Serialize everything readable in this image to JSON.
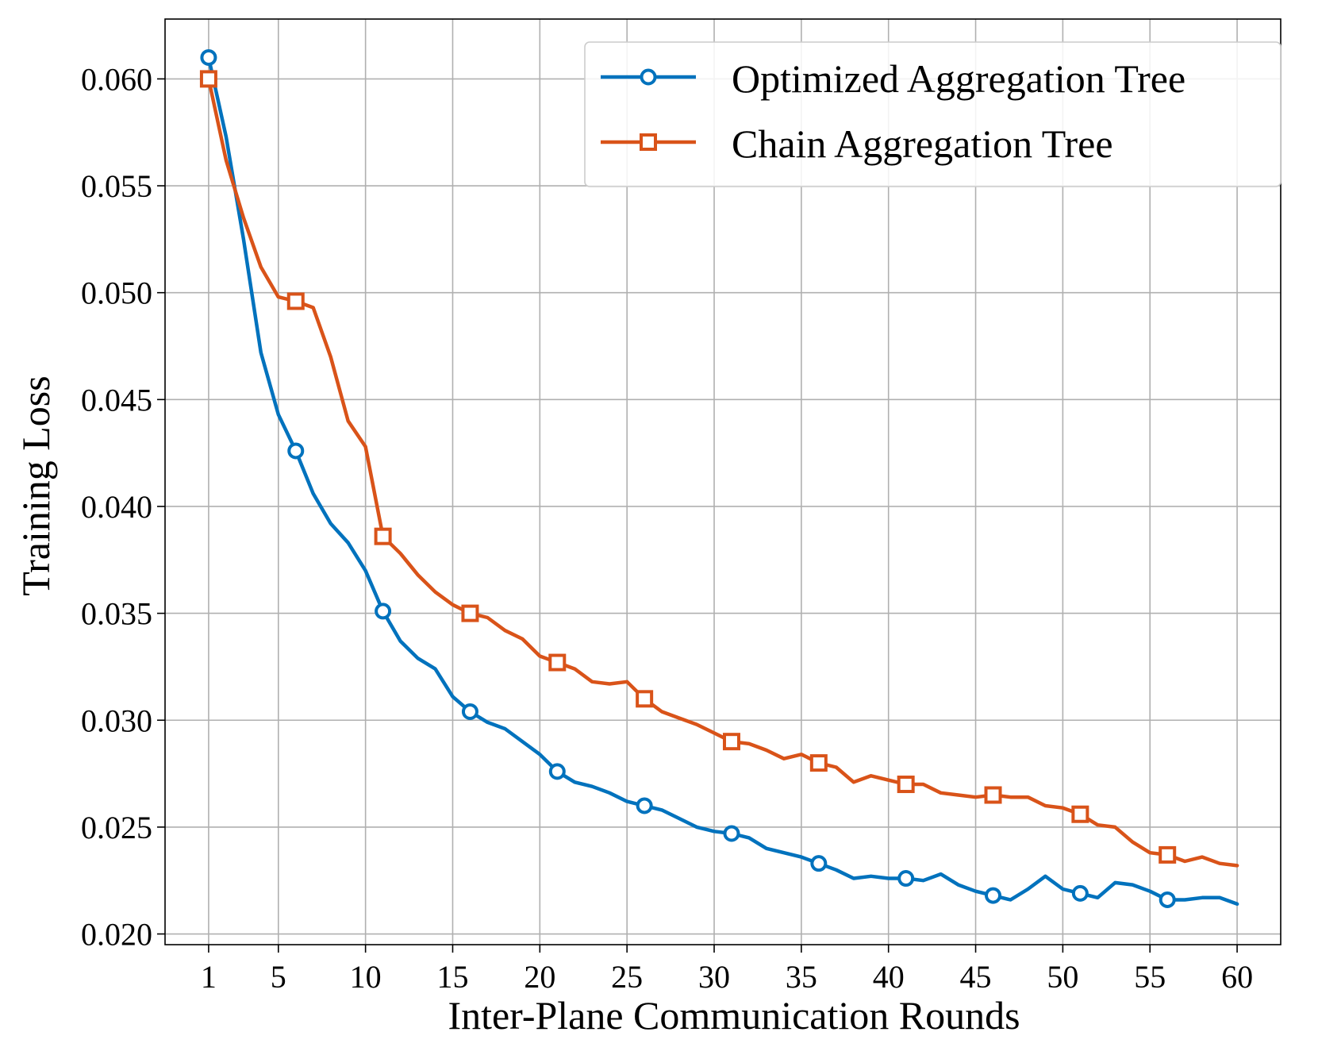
{
  "chart_data": {
    "type": "line",
    "title": "",
    "xlabel": "Inter-Plane Communication Rounds",
    "ylabel": "Training Loss",
    "xlim": [
      -1.5,
      62.5
    ],
    "ylim": [
      0.0195,
      0.0628
    ],
    "xticks": [
      1,
      5,
      10,
      15,
      20,
      25,
      30,
      35,
      40,
      45,
      50,
      55,
      60
    ],
    "xtick_labels": [
      "1",
      "5",
      "10",
      "15",
      "20",
      "25",
      "30",
      "35",
      "40",
      "45",
      "50",
      "55",
      "60"
    ],
    "yticks": [
      0.02,
      0.025,
      0.03,
      0.035,
      0.04,
      0.045,
      0.05,
      0.055,
      0.06
    ],
    "ytick_labels": [
      "0.020",
      "0.025",
      "0.030",
      "0.035",
      "0.040",
      "0.045",
      "0.050",
      "0.055",
      "0.060"
    ],
    "grid": true,
    "legend_position": "top-right",
    "x": [
      1,
      2,
      3,
      4,
      5,
      6,
      7,
      8,
      9,
      10,
      11,
      12,
      13,
      14,
      15,
      16,
      17,
      18,
      19,
      20,
      21,
      22,
      23,
      24,
      25,
      26,
      27,
      28,
      29,
      30,
      31,
      32,
      33,
      34,
      35,
      36,
      37,
      38,
      39,
      40,
      41,
      42,
      43,
      44,
      45,
      46,
      47,
      48,
      49,
      50,
      51,
      52,
      53,
      54,
      55,
      56,
      57,
      58,
      59,
      60
    ],
    "series": [
      {
        "name": "Optimized Aggregation Tree",
        "color": "#0072BD",
        "marker": "circle",
        "marker_every": 5,
        "values": [
          0.061,
          0.0573,
          0.0525,
          0.0472,
          0.0443,
          0.0426,
          0.0406,
          0.0392,
          0.0383,
          0.037,
          0.0351,
          0.0337,
          0.0329,
          0.0324,
          0.0311,
          0.0304,
          0.0299,
          0.0296,
          0.029,
          0.0284,
          0.0276,
          0.0271,
          0.0269,
          0.0266,
          0.0262,
          0.026,
          0.0258,
          0.0254,
          0.025,
          0.0248,
          0.0247,
          0.0245,
          0.024,
          0.0238,
          0.0236,
          0.0233,
          0.023,
          0.0226,
          0.0227,
          0.0226,
          0.0226,
          0.0225,
          0.0228,
          0.0223,
          0.022,
          0.0218,
          0.0216,
          0.0221,
          0.0227,
          0.0221,
          0.0219,
          0.0217,
          0.0224,
          0.0223,
          0.022,
          0.0216,
          0.0216,
          0.0217,
          0.0217,
          0.0214
        ]
      },
      {
        "name": "Chain Aggregation Tree",
        "color": "#D95319",
        "marker": "square",
        "marker_every": 5,
        "values": [
          0.06,
          0.0562,
          0.0535,
          0.0512,
          0.0498,
          0.0496,
          0.0493,
          0.047,
          0.044,
          0.0428,
          0.0386,
          0.0378,
          0.0368,
          0.036,
          0.0354,
          0.035,
          0.0348,
          0.0342,
          0.0338,
          0.033,
          0.0327,
          0.0324,
          0.0318,
          0.0317,
          0.0318,
          0.031,
          0.0304,
          0.0301,
          0.0298,
          0.0294,
          0.029,
          0.0289,
          0.0286,
          0.0282,
          0.0284,
          0.028,
          0.0278,
          0.0271,
          0.0274,
          0.0272,
          0.027,
          0.027,
          0.0266,
          0.0265,
          0.0264,
          0.0265,
          0.0264,
          0.0264,
          0.026,
          0.0259,
          0.0256,
          0.0251,
          0.025,
          0.0243,
          0.0238,
          0.0237,
          0.0234,
          0.0236,
          0.0233,
          0.0232
        ]
      }
    ]
  }
}
